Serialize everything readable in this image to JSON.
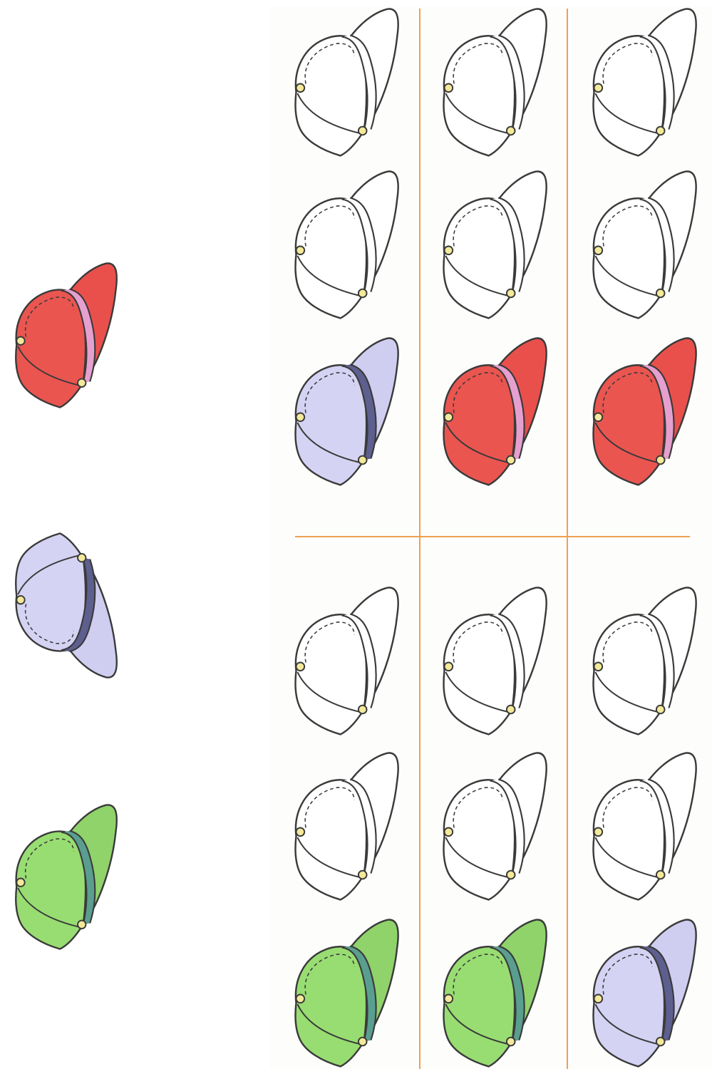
{
  "palette": {
    "red": {
      "body": "#ea5550",
      "band": "#e6a0cf",
      "brim": "#e9504c"
    },
    "violet": {
      "body": "#d5d3f3",
      "band": "#5d5f8e",
      "brim": "#cfcdf0"
    },
    "green": {
      "body": "#98dd72",
      "band": "#5a9e8f",
      "brim": "#8fd36a"
    },
    "white": {
      "body": "#ffffff",
      "band": "#ffffff",
      "brim": "#ffffff"
    },
    "outline": "#3a3a3a",
    "button": "#f3e99a",
    "divider": "#f0a050"
  },
  "samples": [
    {
      "name": "sample-cap-red",
      "color": "red",
      "orientation": "right"
    },
    {
      "name": "sample-cap-violet",
      "color": "violet",
      "orientation": "left"
    },
    {
      "name": "sample-cap-green",
      "color": "green",
      "orientation": "right"
    }
  ],
  "grid": [
    {
      "block": "top",
      "columns": [
        [
          "white",
          "white",
          "violet"
        ],
        [
          "white",
          "white",
          "red"
        ],
        [
          "white",
          "white",
          "red"
        ]
      ]
    },
    {
      "block": "bottom",
      "columns": [
        [
          "white",
          "white",
          "green"
        ],
        [
          "white",
          "white",
          "green"
        ],
        [
          "white",
          "white",
          "violet"
        ]
      ]
    }
  ]
}
